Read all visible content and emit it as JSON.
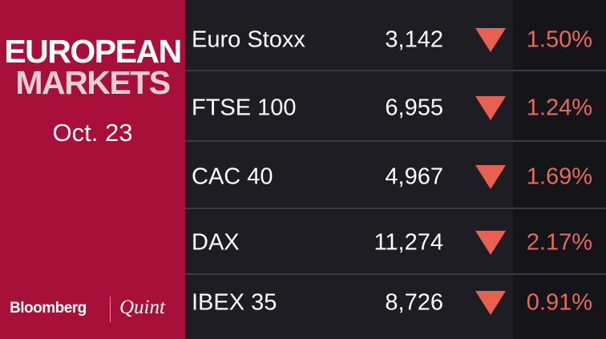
{
  "header": {
    "title_line1": "EUROPEAN",
    "title_line2": "MARKETS",
    "date": "Oct. 23"
  },
  "footer": {
    "brand": "Bloomberg",
    "partner": "Quint"
  },
  "table": {
    "rows": [
      [
        "Euro Stoxx",
        "3,142",
        "1.50%"
      ],
      [
        "FTSE 100",
        "6,955",
        "1.24%"
      ],
      [
        "CAC 40",
        "4,967",
        "1.69%"
      ],
      [
        "DAX",
        "11,274",
        "2.17%"
      ],
      [
        "IBEX 35",
        "8,726",
        "0.91%"
      ]
    ]
  }
}
